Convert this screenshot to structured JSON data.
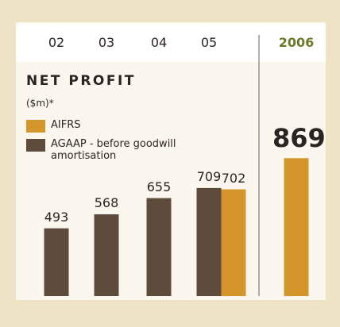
{
  "chart_data": {
    "type": "bar",
    "title": "NET PROFIT",
    "subtitle": "($m)*",
    "categories": [
      "02",
      "03",
      "04",
      "05",
      "2006"
    ],
    "series": [
      {
        "name": "AIFRS",
        "color": "#d4962a",
        "values": [
          null,
          null,
          null,
          702,
          869
        ]
      },
      {
        "name": "AGAAP - before goodwill amortisation",
        "color": "#5e4b3c",
        "values": [
          493,
          568,
          655,
          709,
          null
        ]
      }
    ],
    "ylim": [
      130,
      900
    ]
  }
}
